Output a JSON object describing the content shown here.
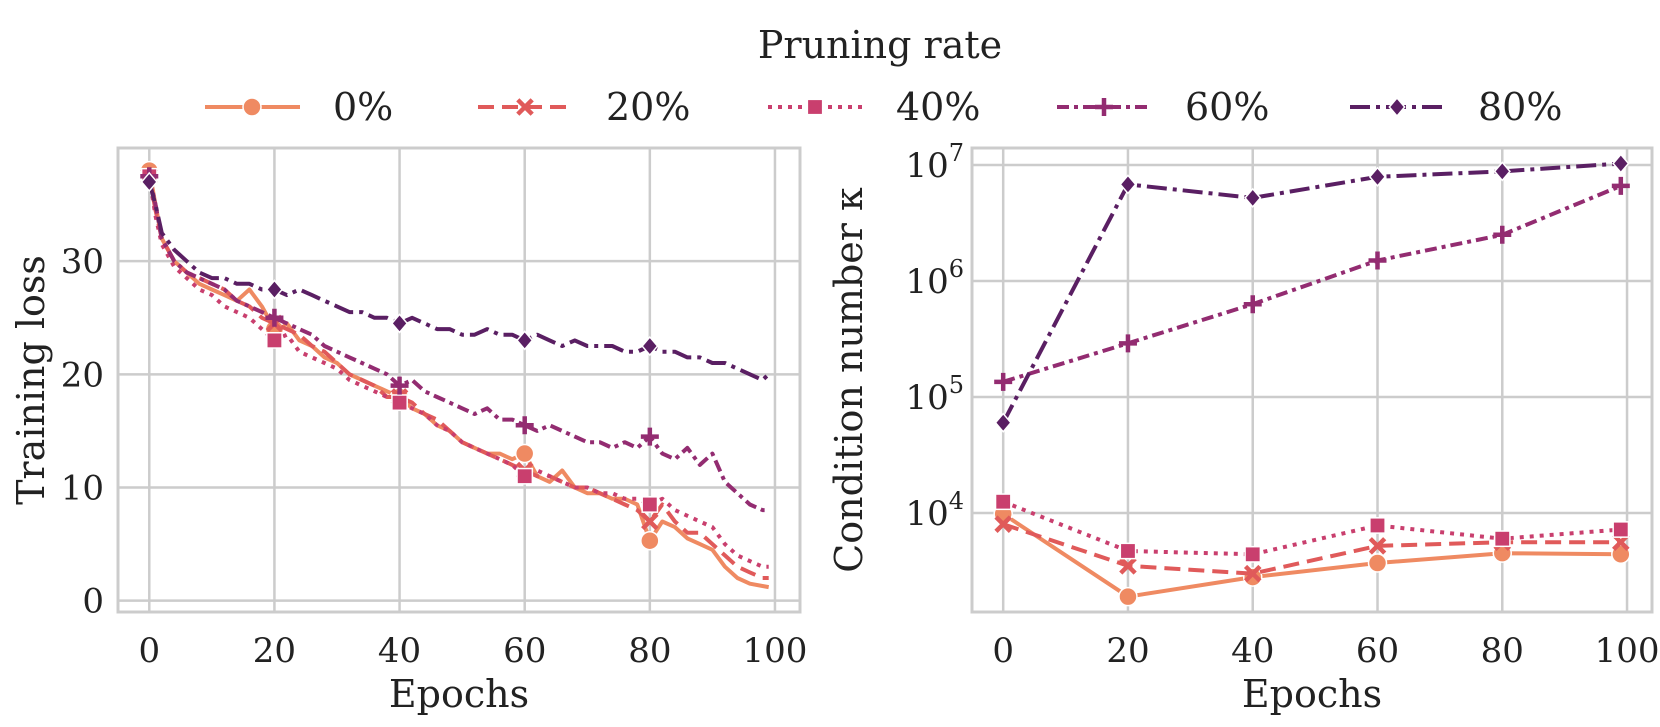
{
  "legend": {
    "title": "Pruning rate",
    "entries": [
      {
        "label": "0%",
        "color": "#ef8a62",
        "marker": "circle",
        "dash": "solid"
      },
      {
        "label": "20%",
        "color": "#e05a5a",
        "marker": "x",
        "dash": "dashed"
      },
      {
        "label": "40%",
        "color": "#c93f6e",
        "marker": "square",
        "dash": "dotted"
      },
      {
        "label": "60%",
        "color": "#932c71",
        "marker": "plus",
        "dash": "dashdot2"
      },
      {
        "label": "80%",
        "color": "#5a1f63",
        "marker": "diamond",
        "dash": "dashdot"
      }
    ]
  },
  "chart_data": [
    {
      "type": "line",
      "xlabel": "Epochs",
      "ylabel": "Training loss",
      "xlim": [
        -5,
        104
      ],
      "ylim": [
        -1,
        40
      ],
      "xticks": [
        0,
        20,
        40,
        60,
        80,
        100
      ],
      "yticks": [
        0,
        10,
        20,
        30
      ],
      "grid": true,
      "marker_epochs": [
        0,
        20,
        40,
        60,
        80
      ],
      "series": [
        {
          "name": "0%",
          "x": [
            0,
            1,
            2,
            4,
            6,
            8,
            10,
            12,
            14,
            16,
            18,
            20,
            22,
            24,
            26,
            28,
            30,
            32,
            34,
            36,
            38,
            40,
            42,
            44,
            46,
            48,
            50,
            52,
            54,
            56,
            58,
            60,
            62,
            64,
            66,
            68,
            70,
            72,
            74,
            76,
            78,
            80,
            82,
            84,
            86,
            88,
            90,
            92,
            94,
            96,
            98,
            99
          ],
          "y": [
            38,
            35,
            32,
            30,
            29,
            28,
            27.5,
            27,
            26.5,
            27.5,
            26,
            24,
            24.5,
            23,
            22.5,
            21.5,
            21,
            20,
            19.5,
            19,
            18.5,
            18,
            17,
            16.5,
            15.5,
            15,
            14,
            13.5,
            13,
            13,
            12.5,
            13,
            11,
            10.5,
            11.5,
            10,
            9.5,
            9.5,
            9,
            9,
            8.5,
            5.3,
            7,
            6.5,
            5.5,
            5,
            4.5,
            3,
            2,
            1.5,
            1.3,
            1.2
          ]
        },
        {
          "name": "20%",
          "x": [
            0,
            1,
            2,
            4,
            6,
            8,
            10,
            12,
            14,
            16,
            18,
            20,
            22,
            24,
            26,
            28,
            30,
            32,
            34,
            36,
            38,
            40,
            42,
            44,
            46,
            48,
            50,
            52,
            54,
            56,
            58,
            60,
            62,
            64,
            66,
            68,
            70,
            72,
            74,
            76,
            78,
            80,
            82,
            84,
            86,
            88,
            90,
            92,
            94,
            96,
            98,
            99
          ],
          "y": [
            37.5,
            34.5,
            32,
            30,
            29,
            28.5,
            28,
            27.5,
            26.5,
            26,
            25,
            24.5,
            24,
            23.5,
            22.5,
            22,
            21,
            20,
            19.5,
            19,
            18,
            18,
            17.5,
            16.5,
            16,
            15,
            14,
            13.5,
            13,
            12.5,
            12,
            11.5,
            11,
            11,
            10.5,
            10,
            10,
            9.5,
            9,
            8.5,
            8,
            7,
            8.5,
            7,
            6,
            6,
            5,
            4,
            3,
            2.5,
            2,
            2
          ]
        },
        {
          "name": "40%",
          "x": [
            0,
            1,
            2,
            4,
            6,
            8,
            10,
            12,
            14,
            16,
            18,
            20,
            22,
            24,
            26,
            28,
            30,
            32,
            34,
            36,
            38,
            40,
            42,
            44,
            46,
            48,
            50,
            52,
            54,
            56,
            58,
            60,
            62,
            64,
            66,
            68,
            70,
            72,
            74,
            76,
            78,
            80,
            82,
            84,
            86,
            88,
            90,
            92,
            94,
            96,
            98,
            99
          ],
          "y": [
            37.5,
            34,
            31.5,
            29.5,
            28.5,
            27.5,
            27,
            26,
            25.5,
            25,
            24,
            23,
            23.5,
            22,
            21.5,
            21,
            20.5,
            19.5,
            19,
            18.5,
            18,
            17.5,
            17,
            16.5,
            15.5,
            15,
            14,
            13.5,
            13,
            12.5,
            12,
            11,
            11.5,
            11,
            10.5,
            10,
            10,
            9.5,
            9.5,
            9,
            9,
            8.5,
            9,
            8,
            7.5,
            7,
            6.5,
            5,
            4,
            3.5,
            3,
            3
          ]
        },
        {
          "name": "60%",
          "x": [
            0,
            1,
            2,
            4,
            6,
            8,
            10,
            12,
            14,
            16,
            18,
            20,
            22,
            24,
            26,
            28,
            30,
            32,
            34,
            36,
            38,
            40,
            42,
            44,
            46,
            48,
            50,
            52,
            54,
            56,
            58,
            60,
            62,
            64,
            66,
            68,
            70,
            72,
            74,
            76,
            78,
            80,
            82,
            84,
            86,
            88,
            90,
            92,
            94,
            96,
            98,
            99
          ],
          "y": [
            37.5,
            35,
            32,
            30,
            29,
            28.5,
            28,
            27.5,
            26.5,
            26,
            25.5,
            25,
            24.5,
            24,
            23.5,
            22.5,
            22,
            21.5,
            21,
            20.5,
            20,
            19,
            19.5,
            18.5,
            18,
            17.5,
            17,
            16.5,
            17,
            16,
            16,
            15.5,
            15,
            15.5,
            15,
            14.5,
            14,
            14,
            13.5,
            14,
            13.5,
            14.5,
            13,
            12.5,
            13.5,
            12,
            13,
            10.5,
            9.5,
            8.5,
            8,
            8
          ]
        },
        {
          "name": "80%",
          "x": [
            0,
            1,
            2,
            4,
            6,
            8,
            10,
            12,
            14,
            16,
            18,
            20,
            22,
            24,
            26,
            28,
            30,
            32,
            34,
            36,
            38,
            40,
            42,
            44,
            46,
            48,
            50,
            52,
            54,
            56,
            58,
            60,
            62,
            64,
            66,
            68,
            70,
            72,
            74,
            76,
            78,
            80,
            82,
            84,
            86,
            88,
            90,
            92,
            94,
            96,
            98,
            99
          ],
          "y": [
            37,
            35,
            32.5,
            31,
            30,
            29,
            28.5,
            28.5,
            28,
            28,
            27.5,
            27.5,
            27,
            27.5,
            27,
            26.5,
            26,
            25.5,
            25.5,
            25,
            25,
            24.5,
            25,
            24.5,
            24,
            24,
            23.5,
            23.5,
            24,
            23.5,
            23.5,
            23,
            23.5,
            23,
            22.5,
            23,
            22.5,
            22.5,
            22.5,
            22,
            22,
            22.5,
            22,
            22,
            21.5,
            21.5,
            21,
            21,
            20.5,
            20,
            19.5,
            20
          ]
        }
      ]
    },
    {
      "type": "line",
      "xlabel": "Epochs",
      "ylabel": "Condition number κ",
      "yscale": "log",
      "xlim": [
        -5,
        104
      ],
      "ylim": [
        1400,
        14000000
      ],
      "xticks": [
        0,
        20,
        40,
        60,
        80,
        100
      ],
      "yticks": [
        10000,
        100000,
        1000000,
        10000000
      ],
      "yticklabels": [
        "10",
        "10",
        "10",
        "10"
      ],
      "yticksup": [
        "4",
        "5",
        "6",
        "7"
      ],
      "grid": true,
      "series": [
        {
          "name": "0%",
          "x": [
            0,
            20,
            40,
            60,
            80,
            99
          ],
          "y": [
            9800,
            1900,
            2800,
            3700,
            4500,
            4400
          ]
        },
        {
          "name": "20%",
          "x": [
            0,
            20,
            40,
            60,
            80,
            99
          ],
          "y": [
            8000,
            3500,
            3000,
            5200,
            5600,
            5600
          ]
        },
        {
          "name": "40%",
          "x": [
            0,
            20,
            40,
            60,
            80,
            99
          ],
          "y": [
            12500,
            4700,
            4400,
            7800,
            6000,
            7200
          ]
        },
        {
          "name": "60%",
          "x": [
            0,
            20,
            40,
            60,
            80,
            99
          ],
          "y": [
            135000,
            290000,
            630000,
            1500000,
            2500000,
            6600000
          ]
        },
        {
          "name": "80%",
          "x": [
            0,
            20,
            40,
            60,
            80,
            99
          ],
          "y": [
            60000,
            6800000,
            5200000,
            7900000,
            8800000,
            10300000
          ]
        }
      ]
    }
  ]
}
